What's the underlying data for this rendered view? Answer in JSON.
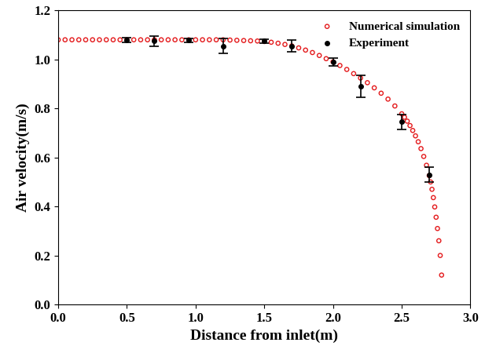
{
  "chart_data": {
    "type": "scatter",
    "x_label": "Distance from inlet(m)",
    "y_label": "Air velocity(m/s)",
    "xlim": [
      0,
      3.0
    ],
    "ylim": [
      0,
      1.2
    ],
    "xticks": [
      {
        "value": 0,
        "label": "0.0"
      },
      {
        "value": 0.5,
        "label": "0.5"
      },
      {
        "value": 1,
        "label": "1.0"
      },
      {
        "value": 1.5,
        "label": "1.5"
      },
      {
        "value": 2,
        "label": "2.0"
      },
      {
        "value": 2.5,
        "label": "2.5"
      },
      {
        "value": 3,
        "label": "3.0"
      }
    ],
    "yticks": [
      {
        "value": 0,
        "label": "0.0"
      },
      {
        "value": 0.2,
        "label": "0.2"
      },
      {
        "value": 0.4,
        "label": "0.4"
      },
      {
        "value": 0.6,
        "label": "0.6"
      },
      {
        "value": 0.8,
        "label": "0.8"
      },
      {
        "value": 1,
        "label": "1.0"
      },
      {
        "value": 1.2,
        "label": "1.2"
      }
    ],
    "legend": "upper right",
    "grid": false,
    "series": [
      {
        "name": "Numerical simulation",
        "color": "#e41a1c",
        "marker": "open_circle",
        "x": [
          0.0,
          0.05,
          0.1,
          0.15,
          0.2,
          0.25,
          0.3,
          0.35,
          0.4,
          0.45,
          0.5,
          0.55,
          0.6,
          0.65,
          0.7,
          0.75,
          0.8,
          0.85,
          0.9,
          0.95,
          1.0,
          1.05,
          1.1,
          1.15,
          1.2,
          1.25,
          1.3,
          1.35,
          1.4,
          1.45,
          1.5,
          1.55,
          1.6,
          1.65,
          1.7,
          1.75,
          1.8,
          1.85,
          1.9,
          1.95,
          2.0,
          2.05,
          2.1,
          2.15,
          2.2,
          2.25,
          2.3,
          2.35,
          2.4,
          2.45,
          2.5,
          2.52,
          2.54,
          2.56,
          2.58,
          2.6,
          2.62,
          2.64,
          2.66,
          2.68,
          2.7,
          2.71,
          2.72,
          2.73,
          2.74,
          2.75,
          2.76,
          2.77,
          2.78,
          2.79
        ],
        "values": [
          1.08,
          1.08,
          1.08,
          1.08,
          1.08,
          1.08,
          1.08,
          1.08,
          1.08,
          1.08,
          1.08,
          1.08,
          1.08,
          1.08,
          1.08,
          1.08,
          1.08,
          1.08,
          1.08,
          1.08,
          1.08,
          1.08,
          1.08,
          1.08,
          1.08,
          1.079,
          1.078,
          1.077,
          1.076,
          1.075,
          1.073,
          1.07,
          1.066,
          1.061,
          1.055,
          1.047,
          1.038,
          1.028,
          1.016,
          1.003,
          0.99,
          0.975,
          0.959,
          0.942,
          0.924,
          0.905,
          0.884,
          0.862,
          0.838,
          0.81,
          0.778,
          0.764,
          0.748,
          0.73,
          0.71,
          0.688,
          0.664,
          0.636,
          0.604,
          0.568,
          0.526,
          0.5,
          0.47,
          0.436,
          0.398,
          0.356,
          0.31,
          0.26,
          0.2,
          0.12
        ]
      },
      {
        "name": "Experiment",
        "color": "#000000",
        "marker": "filled_circle",
        "x": [
          0.5,
          0.7,
          0.95,
          1.2,
          1.5,
          1.7,
          2.0,
          2.2,
          2.5,
          2.7
        ],
        "values": [
          1.078,
          1.075,
          1.078,
          1.055,
          1.075,
          1.055,
          0.99,
          0.89,
          0.745,
          0.53
        ],
        "errors": [
          0.01,
          0.02,
          0.008,
          0.03,
          0.008,
          0.025,
          0.015,
          0.045,
          0.03,
          0.03
        ]
      }
    ]
  }
}
